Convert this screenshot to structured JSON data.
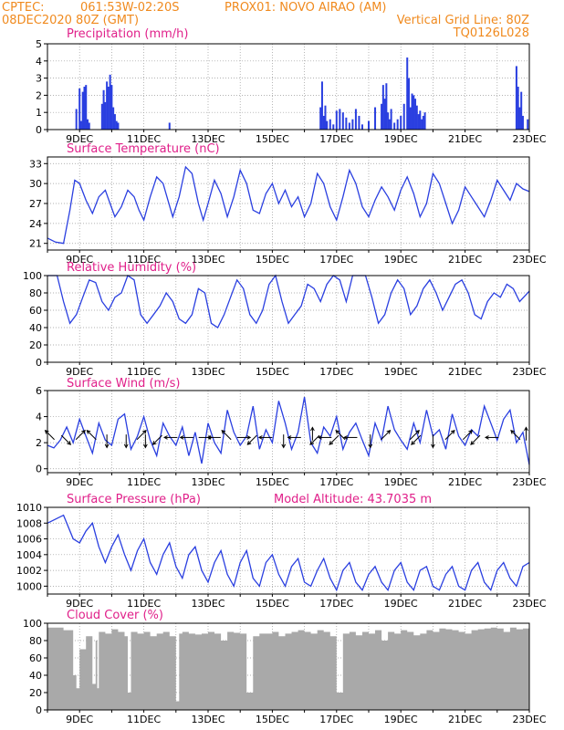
{
  "header": {
    "line1_left": "CPTEC:",
    "line1_coords": "061:53W-02:20S",
    "line1_point": "PROX01: NOVO AIRAO (AM)",
    "line2_left": "08DEC2020 80Z (GMT)",
    "line2_right": "Vertical Grid Line: 80Z",
    "line3_right": "TQ0126L028"
  },
  "colors": {
    "header": "#f08a1e",
    "title": "#e0208a",
    "line": "#2a3fe0",
    "cloud": "#a9a9a9",
    "grid": "#999999"
  },
  "chart_data": [
    {
      "type": "bar",
      "title": "Precipitation (mm/h)",
      "ylim": [
        0,
        5
      ],
      "yticks": [
        0,
        1,
        2,
        3,
        4,
        5
      ],
      "xticks": [
        "9DEC",
        "11DEC",
        "13DEC",
        "15DEC",
        "17DEC",
        "19DEC",
        "21DEC",
        "23DEC"
      ],
      "x": [
        0.9,
        1.0,
        1.05,
        1.1,
        1.15,
        1.2,
        1.25,
        1.3,
        1.7,
        1.75,
        1.8,
        1.85,
        1.9,
        1.95,
        2.0,
        2.05,
        2.1,
        2.15,
        2.2,
        3.8,
        8.5,
        8.55,
        8.6,
        8.65,
        8.7,
        8.8,
        8.9,
        9.0,
        9.1,
        9.2,
        9.3,
        9.4,
        9.5,
        9.6,
        9.7,
        9.8,
        10.0,
        10.2,
        10.4,
        10.45,
        10.5,
        10.55,
        10.6,
        10.65,
        10.7,
        10.8,
        10.9,
        11.0,
        11.1,
        11.2,
        11.25,
        11.3,
        11.35,
        11.4,
        11.45,
        11.5,
        11.55,
        11.6,
        11.65,
        11.7,
        11.75,
        14.6,
        14.65,
        14.7,
        14.75,
        14.8,
        14.95
      ],
      "values": [
        1.2,
        2.4,
        0.5,
        2.2,
        2.5,
        2.6,
        0.6,
        0.4,
        1.5,
        2.3,
        1.6,
        2.8,
        2.5,
        3.2,
        2.6,
        1.3,
        0.9,
        0.5,
        0.4,
        0.4,
        1.3,
        2.8,
        0.8,
        1.4,
        0.5,
        0.6,
        0.3,
        1.1,
        1.2,
        1.0,
        0.7,
        0.4,
        0.6,
        1.2,
        0.8,
        0.3,
        0.5,
        1.3,
        1.5,
        2.6,
        1.8,
        2.7,
        1.0,
        0.6,
        1.2,
        0.4,
        0.6,
        0.8,
        1.5,
        4.2,
        3.0,
        1.3,
        2.1,
        2.0,
        1.8,
        1.4,
        0.9,
        1.1,
        0.6,
        0.8,
        1.0,
        3.7,
        2.5,
        1.3,
        2.2,
        0.8,
        0.6
      ]
    },
    {
      "type": "line",
      "title": "Surface Temperature (nC)",
      "ylim": [
        20,
        34
      ],
      "yticks": [
        21,
        24,
        27,
        30,
        33
      ],
      "xticks": [
        "9DEC",
        "11DEC",
        "13DEC",
        "15DEC",
        "17DEC",
        "19DEC",
        "21DEC",
        "23DEC"
      ],
      "x": [
        0,
        0.25,
        0.5,
        0.7,
        0.85,
        1.0,
        1.2,
        1.4,
        1.6,
        1.8,
        1.95,
        2.1,
        2.3,
        2.5,
        2.7,
        2.85,
        3.0,
        3.2,
        3.4,
        3.6,
        3.75,
        3.9,
        4.1,
        4.3,
        4.5,
        4.7,
        4.85,
        5.0,
        5.2,
        5.4,
        5.6,
        5.8,
        6.0,
        6.2,
        6.4,
        6.6,
        6.8,
        7.0,
        7.2,
        7.4,
        7.6,
        7.8,
        8.0,
        8.2,
        8.4,
        8.6,
        8.8,
        9.0,
        9.2,
        9.4,
        9.6,
        9.8,
        10.0,
        10.2,
        10.4,
        10.6,
        10.8,
        11.0,
        11.2,
        11.4,
        11.6,
        11.8,
        12.0,
        12.2,
        12.4,
        12.6,
        12.8,
        13.0,
        13.2,
        13.4,
        13.6,
        13.8,
        14.0,
        14.2,
        14.4,
        14.6,
        14.8,
        15.0
      ],
      "values": [
        21.8,
        21.2,
        21.0,
        26.0,
        30.5,
        30.0,
        27.5,
        25.5,
        28.0,
        29.0,
        27.0,
        25.0,
        26.5,
        29.0,
        28.0,
        26.0,
        24.5,
        28.0,
        31.0,
        30.0,
        27.5,
        25.0,
        28.0,
        32.5,
        31.5,
        27.0,
        24.5,
        27.0,
        30.5,
        28.5,
        25.0,
        28.0,
        32.0,
        30.0,
        26.0,
        25.5,
        28.5,
        30.0,
        27.0,
        29.0,
        26.5,
        28.0,
        25.0,
        27.0,
        31.5,
        30.0,
        26.5,
        24.5,
        28.0,
        32.0,
        30.0,
        26.5,
        25.0,
        27.5,
        29.5,
        28.0,
        26.0,
        29.0,
        31.0,
        28.5,
        25.0,
        27.0,
        31.5,
        30.0,
        27.0,
        24.0,
        26.0,
        29.5,
        28.0,
        26.5,
        25.0,
        27.5,
        30.5,
        29.0,
        27.5,
        30.0,
        29.2,
        28.8
      ]
    },
    {
      "type": "line",
      "title": "Relative Humidity (%)",
      "ylim": [
        0,
        100
      ],
      "yticks": [
        0,
        20,
        40,
        60,
        80,
        100
      ],
      "xticks": [
        "9DEC",
        "11DEC",
        "13DEC",
        "15DEC",
        "17DEC",
        "19DEC",
        "21DEC",
        "23DEC"
      ],
      "x": [
        0,
        0.3,
        0.5,
        0.7,
        0.9,
        1.1,
        1.3,
        1.5,
        1.7,
        1.9,
        2.1,
        2.3,
        2.5,
        2.7,
        2.9,
        3.1,
        3.3,
        3.5,
        3.7,
        3.9,
        4.1,
        4.3,
        4.5,
        4.7,
        4.9,
        5.1,
        5.3,
        5.5,
        5.7,
        5.9,
        6.1,
        6.3,
        6.5,
        6.7,
        6.9,
        7.1,
        7.3,
        7.5,
        7.7,
        7.9,
        8.1,
        8.3,
        8.5,
        8.7,
        8.9,
        9.1,
        9.3,
        9.5,
        9.7,
        9.9,
        10.1,
        10.3,
        10.5,
        10.7,
        10.9,
        11.1,
        11.3,
        11.5,
        11.7,
        11.9,
        12.1,
        12.3,
        12.5,
        12.7,
        12.9,
        13.1,
        13.3,
        13.5,
        13.7,
        13.9,
        14.1,
        14.3,
        14.5,
        14.7,
        15.0
      ],
      "values": [
        100,
        100,
        70,
        45,
        55,
        75,
        95,
        92,
        70,
        60,
        75,
        80,
        100,
        95,
        55,
        45,
        55,
        65,
        80,
        70,
        50,
        45,
        55,
        85,
        80,
        45,
        40,
        55,
        75,
        95,
        85,
        55,
        45,
        60,
        90,
        100,
        70,
        45,
        55,
        65,
        90,
        85,
        70,
        90,
        100,
        95,
        70,
        100,
        100,
        100,
        75,
        45,
        55,
        80,
        95,
        85,
        55,
        65,
        85,
        95,
        80,
        60,
        75,
        90,
        95,
        80,
        55,
        50,
        70,
        80,
        75,
        90,
        85,
        70,
        82
      ]
    },
    {
      "type": "line",
      "title": "Surface Wind (m/s)",
      "ylim": [
        -0.3,
        6
      ],
      "yticks": [
        0,
        2,
        4,
        6
      ],
      "xticks": [
        "9DEC",
        "11DEC",
        "13DEC",
        "15DEC",
        "17DEC",
        "19DEC",
        "21DEC",
        "23DEC"
      ],
      "x": [
        0,
        0.2,
        0.4,
        0.6,
        0.8,
        1.0,
        1.2,
        1.4,
        1.6,
        1.8,
        2.0,
        2.2,
        2.4,
        2.6,
        2.8,
        3.0,
        3.2,
        3.4,
        3.6,
        3.8,
        4.0,
        4.2,
        4.4,
        4.6,
        4.8,
        5.0,
        5.2,
        5.4,
        5.6,
        5.8,
        6.0,
        6.2,
        6.4,
        6.6,
        6.8,
        7.0,
        7.2,
        7.4,
        7.6,
        7.8,
        8.0,
        8.2,
        8.4,
        8.6,
        8.8,
        9.0,
        9.2,
        9.4,
        9.6,
        9.8,
        10.0,
        10.2,
        10.4,
        10.6,
        10.8,
        11.0,
        11.2,
        11.4,
        11.6,
        11.8,
        12.0,
        12.2,
        12.4,
        12.6,
        12.8,
        13.0,
        13.2,
        13.4,
        13.6,
        13.8,
        14.0,
        14.2,
        14.4,
        14.6,
        14.8,
        15.0
      ],
      "values": [
        1.8,
        1.6,
        2.2,
        3.2,
        2.0,
        3.8,
        2.5,
        1.2,
        3.5,
        2.2,
        1.8,
        3.8,
        4.2,
        1.5,
        2.5,
        4.0,
        2.2,
        1.0,
        3.5,
        2.5,
        1.8,
        3.2,
        1.0,
        2.8,
        0.4,
        3.5,
        2.0,
        1.2,
        4.5,
        2.8,
        1.8,
        2.5,
        4.8,
        1.5,
        3.0,
        2.0,
        5.2,
        3.5,
        1.5,
        2.8,
        5.5,
        2.0,
        1.2,
        3.2,
        2.5,
        4.0,
        1.5,
        2.8,
        3.5,
        2.2,
        1.0,
        3.5,
        2.2,
        4.8,
        3.0,
        2.2,
        1.5,
        3.5,
        2.0,
        4.5,
        2.5,
        3.0,
        1.5,
        4.2,
        2.5,
        1.8,
        3.0,
        2.5,
        4.8,
        3.5,
        2.2,
        3.8,
        4.5,
        2.0,
        2.8,
        0.3
      ],
      "arrows": [
        {
          "x": 0.15,
          "dir": "NW"
        },
        {
          "x": 0.5,
          "dir": "SE"
        },
        {
          "x": 0.95,
          "dir": "NE"
        },
        {
          "x": 1.45,
          "dir": "NW"
        },
        {
          "x": 1.85,
          "dir": "S"
        },
        {
          "x": 2.45,
          "dir": "S"
        },
        {
          "x": 2.85,
          "dir": "NE"
        },
        {
          "x": 3.05,
          "dir": "S"
        },
        {
          "x": 3.5,
          "dir": "SW"
        },
        {
          "x": 3.95,
          "dir": "W"
        },
        {
          "x": 4.45,
          "dir": "W"
        },
        {
          "x": 4.8,
          "dir": "E"
        },
        {
          "x": 5.3,
          "dir": "W"
        },
        {
          "x": 5.65,
          "dir": "NW"
        },
        {
          "x": 6.0,
          "dir": "E"
        },
        {
          "x": 6.45,
          "dir": "SW"
        },
        {
          "x": 6.9,
          "dir": "W"
        },
        {
          "x": 7.35,
          "dir": "S"
        },
        {
          "x": 7.8,
          "dir": "W"
        },
        {
          "x": 8.25,
          "dir": "N"
        },
        {
          "x": 8.4,
          "dir": "SW"
        },
        {
          "x": 8.75,
          "dir": "W"
        },
        {
          "x": 9.0,
          "dir": "SW"
        },
        {
          "x": 9.2,
          "dir": "NW"
        },
        {
          "x": 9.55,
          "dir": "W"
        },
        {
          "x": 10.05,
          "dir": "S"
        },
        {
          "x": 10.45,
          "dir": "NE"
        },
        {
          "x": 11.35,
          "dir": "NE"
        },
        {
          "x": 11.55,
          "dir": "SW"
        },
        {
          "x": 12.0,
          "dir": "S"
        },
        {
          "x": 12.45,
          "dir": "NE"
        },
        {
          "x": 13.0,
          "dir": "NE"
        },
        {
          "x": 13.4,
          "dir": "SW"
        },
        {
          "x": 13.95,
          "dir": "W"
        },
        {
          "x": 14.65,
          "dir": "NW"
        },
        {
          "x": 14.9,
          "dir": "N"
        }
      ]
    },
    {
      "type": "line",
      "title": "Surface Pressure (hPa)",
      "subtitle": "Model Altitude: 43.7035 m",
      "ylim": [
        999,
        1010
      ],
      "yticks": [
        1000,
        1002,
        1004,
        1006,
        1008,
        1010
      ],
      "xticks": [
        "9DEC",
        "11DEC",
        "13DEC",
        "15DEC",
        "17DEC",
        "19DEC",
        "21DEC",
        "23DEC"
      ],
      "x": [
        0,
        0.3,
        0.5,
        0.8,
        1.0,
        1.2,
        1.4,
        1.6,
        1.8,
        2.0,
        2.2,
        2.4,
        2.6,
        2.8,
        3.0,
        3.2,
        3.4,
        3.6,
        3.8,
        4.0,
        4.2,
        4.4,
        4.6,
        4.8,
        5.0,
        5.2,
        5.4,
        5.6,
        5.8,
        6.0,
        6.2,
        6.4,
        6.6,
        6.8,
        7.0,
        7.2,
        7.4,
        7.6,
        7.8,
        8.0,
        8.2,
        8.4,
        8.6,
        8.8,
        9.0,
        9.2,
        9.4,
        9.6,
        9.8,
        10.0,
        10.2,
        10.4,
        10.6,
        10.8,
        11.0,
        11.2,
        11.4,
        11.6,
        11.8,
        12.0,
        12.2,
        12.4,
        12.6,
        12.8,
        13.0,
        13.2,
        13.4,
        13.6,
        13.8,
        14.0,
        14.2,
        14.4,
        14.6,
        14.8,
        15.0
      ],
      "values": [
        1008,
        1008.6,
        1009,
        1006,
        1005.5,
        1007,
        1008,
        1005,
        1003,
        1005,
        1006.5,
        1004,
        1002,
        1004.5,
        1006,
        1003,
        1001.5,
        1004,
        1005.5,
        1002.5,
        1001,
        1004,
        1005,
        1002,
        1000.5,
        1003,
        1004.5,
        1001.5,
        1000,
        1003,
        1004.5,
        1001,
        1000,
        1003,
        1004,
        1001.5,
        1000,
        1002.5,
        1003.5,
        1000.5,
        1000,
        1002,
        1003.5,
        1001,
        999.5,
        1002,
        1003,
        1000.5,
        999.5,
        1001.5,
        1002.5,
        1000.5,
        999.5,
        1002,
        1003,
        1000.5,
        999.5,
        1002,
        1002.5,
        1000,
        999.5,
        1001.5,
        1002.5,
        1000,
        999.5,
        1002,
        1003,
        1000.5,
        999.5,
        1002,
        1003,
        1001,
        1000,
        1002.5,
        1003
      ]
    },
    {
      "type": "area",
      "title": "Cloud Cover (%)",
      "ylim": [
        0,
        100
      ],
      "yticks": [
        0,
        20,
        40,
        60,
        80,
        100
      ],
      "xticks": [
        "9DEC",
        "11DEC",
        "13DEC",
        "15DEC",
        "17DEC",
        "19DEC",
        "21DEC",
        "23DEC"
      ],
      "x": [
        0,
        0.5,
        0.8,
        0.9,
        1.0,
        1.2,
        1.4,
        1.5,
        1.55,
        1.6,
        1.8,
        2.0,
        2.2,
        2.4,
        2.5,
        2.6,
        2.8,
        3.0,
        3.2,
        3.4,
        3.6,
        3.8,
        4.0,
        4.1,
        4.2,
        4.4,
        4.6,
        4.8,
        5.0,
        5.2,
        5.4,
        5.6,
        5.8,
        6.0,
        6.2,
        6.4,
        6.6,
        6.8,
        7.0,
        7.2,
        7.4,
        7.6,
        7.8,
        8.0,
        8.2,
        8.4,
        8.6,
        8.8,
        9.0,
        9.2,
        9.4,
        9.6,
        9.8,
        10.0,
        10.2,
        10.4,
        10.6,
        10.8,
        11.0,
        11.2,
        11.4,
        11.6,
        11.8,
        12.0,
        12.2,
        12.4,
        12.6,
        12.8,
        13.0,
        13.2,
        13.4,
        13.6,
        13.8,
        14.0,
        14.2,
        14.4,
        14.6,
        14.8,
        15.0
      ],
      "values": [
        95,
        92,
        40,
        25,
        70,
        85,
        30,
        80,
        25,
        90,
        88,
        93,
        90,
        85,
        20,
        90,
        88,
        90,
        85,
        88,
        90,
        85,
        10,
        88,
        90,
        88,
        87,
        88,
        90,
        88,
        80,
        90,
        89,
        88,
        20,
        85,
        88,
        88,
        90,
        85,
        88,
        90,
        92,
        90,
        88,
        92,
        90,
        85,
        20,
        88,
        90,
        86,
        90,
        88,
        92,
        80,
        90,
        88,
        92,
        90,
        86,
        88,
        92,
        90,
        94,
        93,
        92,
        90,
        88,
        92,
        93,
        94,
        95,
        94,
        90,
        95,
        93,
        94,
        95
      ]
    }
  ]
}
